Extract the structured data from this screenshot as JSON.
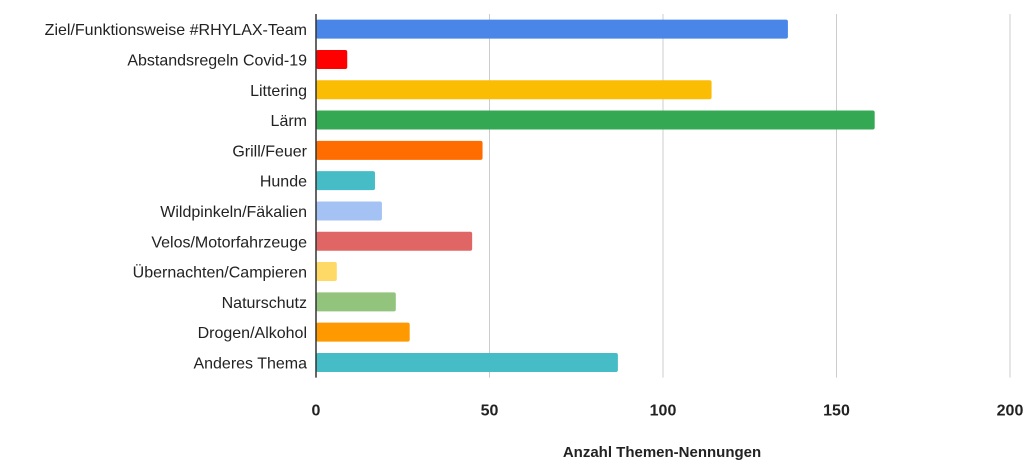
{
  "chart_data": {
    "type": "bar",
    "orientation": "horizontal",
    "categories": [
      "Ziel/Funktionsweise #RHYLAX-Team",
      "Abstandsregeln Covid-19",
      "Littering",
      "Lärm",
      "Grill/Feuer",
      "Hunde",
      "Wildpinkeln/Fäkalien",
      "Velos/Motorfahrzeuge",
      "Übernachten/Campieren",
      "Naturschutz",
      "Drogen/Alkohol",
      "Anderes Thema"
    ],
    "values": [
      136,
      9,
      114,
      161,
      48,
      17,
      19,
      45,
      6,
      23,
      27,
      87
    ],
    "colors": [
      "#4a86e8",
      "#ff0000",
      "#fbbc04",
      "#34a853",
      "#ff6d01",
      "#46bdc6",
      "#a4c2f4",
      "#e06666",
      "#ffd966",
      "#93c47d",
      "#ff9900",
      "#46bdc6"
    ],
    "xlabel": "Anzahl Themen-Nennungen",
    "ylabel": "",
    "xlim": [
      0,
      200
    ],
    "xticks": [
      "0",
      "50",
      "100",
      "150",
      "200"
    ],
    "grid": true,
    "legend": "none"
  }
}
